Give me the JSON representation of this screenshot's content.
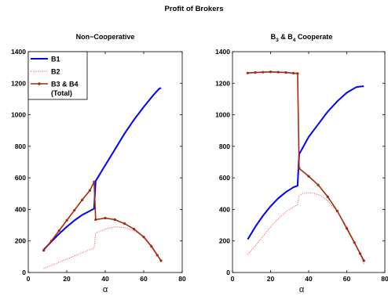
{
  "figure_title": "Profit of Brokers",
  "xlabel": "α",
  "colors": {
    "B1": "#0000ff",
    "B2": "#ff4040",
    "B34": "#a52a0a"
  },
  "legend": {
    "placement": "top-left",
    "entries": [
      "B1",
      "B2",
      "B3 & B4",
      "(Total)"
    ]
  },
  "chart_data": [
    {
      "type": "line",
      "title": "Non−Cooperative",
      "xlim": [
        0,
        80
      ],
      "ylim": [
        0,
        1400
      ],
      "x_ticks": [
        "0",
        "20",
        "40",
        "60",
        "80"
      ],
      "y_ticks": [
        "0",
        "200",
        "400",
        "600",
        "800",
        "1000",
        "1200",
        "1400"
      ],
      "series": [
        {
          "name": "B1",
          "style": "solid",
          "x": [
            8,
            12,
            16,
            20,
            24,
            28,
            32,
            34.2,
            35,
            40,
            45,
            50,
            55,
            60,
            65,
            68,
            69
          ],
          "y": [
            145,
            195,
            245,
            290,
            330,
            365,
            390,
            405,
            580,
            680,
            780,
            880,
            970,
            1050,
            1125,
            1165,
            1170
          ]
        },
        {
          "name": "B2",
          "style": "dotted",
          "x": [
            8,
            12,
            16,
            20,
            24,
            28,
            32,
            34.2,
            35,
            40,
            45,
            50,
            55,
            60,
            64,
            67,
            69
          ],
          "y": [
            25,
            45,
            65,
            85,
            105,
            125,
            145,
            155,
            250,
            275,
            290,
            285,
            265,
            230,
            175,
            115,
            65
          ]
        },
        {
          "name": "B3 & B4 (Total)",
          "style": "solid-markers",
          "x": [
            8,
            12,
            16,
            20,
            24,
            28,
            32,
            34.2,
            35,
            40,
            45,
            50,
            55,
            60,
            64,
            67,
            69
          ],
          "y": [
            140,
            200,
            265,
            330,
            395,
            460,
            520,
            575,
            335,
            345,
            335,
            310,
            275,
            225,
            165,
            110,
            75
          ]
        }
      ]
    },
    {
      "type": "line",
      "title_parts": [
        "B",
        "3",
        " & B",
        "4",
        " Cooperate"
      ],
      "xlim": [
        0,
        80
      ],
      "ylim": [
        0,
        1400
      ],
      "x_ticks": [
        "0",
        "20",
        "40",
        "60",
        "80"
      ],
      "y_ticks": [
        "0",
        "200",
        "400",
        "600",
        "800",
        "1000",
        "1200",
        "1400"
      ],
      "series": [
        {
          "name": "B1",
          "style": "solid",
          "x": [
            8,
            12,
            16,
            20,
            24,
            28,
            32,
            34.2,
            35,
            40,
            45,
            50,
            55,
            60,
            65,
            68,
            69
          ],
          "y": [
            210,
            290,
            360,
            420,
            470,
            510,
            540,
            550,
            750,
            860,
            940,
            1020,
            1085,
            1140,
            1175,
            1180,
            1180
          ]
        },
        {
          "name": "B2",
          "style": "dotted",
          "x": [
            8,
            12,
            16,
            20,
            24,
            28,
            32,
            34.2,
            35,
            38,
            42,
            46,
            50,
            55,
            60,
            64,
            67,
            69
          ],
          "y": [
            115,
            170,
            230,
            290,
            340,
            385,
            415,
            430,
            490,
            505,
            505,
            490,
            455,
            385,
            290,
            195,
            115,
            55
          ]
        },
        {
          "name": "B3 & B4 (Total)",
          "style": "solid-markers",
          "x": [
            8,
            12,
            16,
            20,
            24,
            28,
            32,
            34.2,
            35,
            40,
            45,
            50,
            55,
            60,
            64,
            67,
            69
          ],
          "y": [
            1265,
            1268,
            1270,
            1272,
            1270,
            1268,
            1264,
            1262,
            660,
            610,
            555,
            480,
            390,
            280,
            190,
            120,
            75
          ]
        }
      ]
    }
  ]
}
